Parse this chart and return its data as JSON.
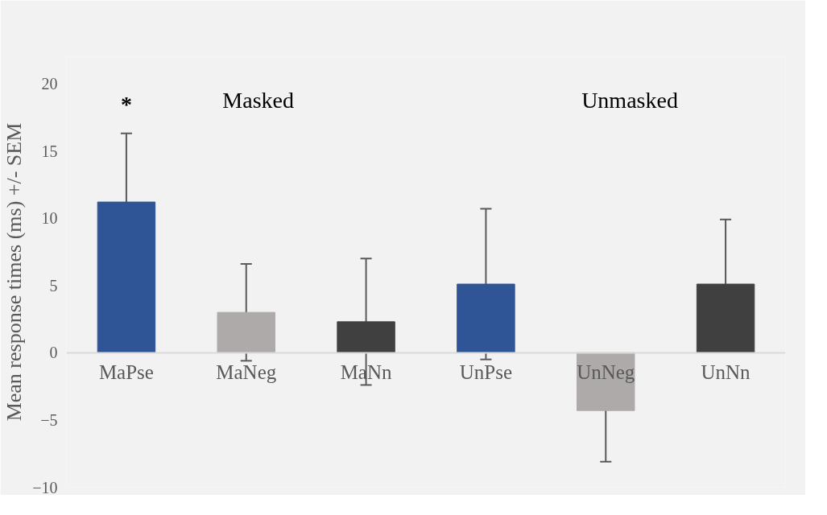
{
  "chart_data": {
    "type": "bar",
    "ylabel": "Mean response times (ms) +/- SEM",
    "categories": [
      "MaPse",
      "MaNeg",
      "MaNn",
      "UnPse",
      "UnNeg",
      "UnNn"
    ],
    "values": [
      11.2,
      3.0,
      2.3,
      5.1,
      -4.3,
      5.1
    ],
    "colors": [
      "#2f5597",
      "#aeaaaa",
      "#404040",
      "#2f5597",
      "#aeaaaa",
      "#404040"
    ],
    "errors": [
      5.1,
      3.6,
      4.7,
      5.6,
      3.8,
      4.8
    ],
    "ylim": [
      -10,
      22
    ],
    "yticks": [
      -10,
      -5,
      0,
      5,
      10,
      15,
      20
    ],
    "grid": false,
    "annotations": [
      "*",
      "Masked",
      "Unmasked"
    ]
  }
}
